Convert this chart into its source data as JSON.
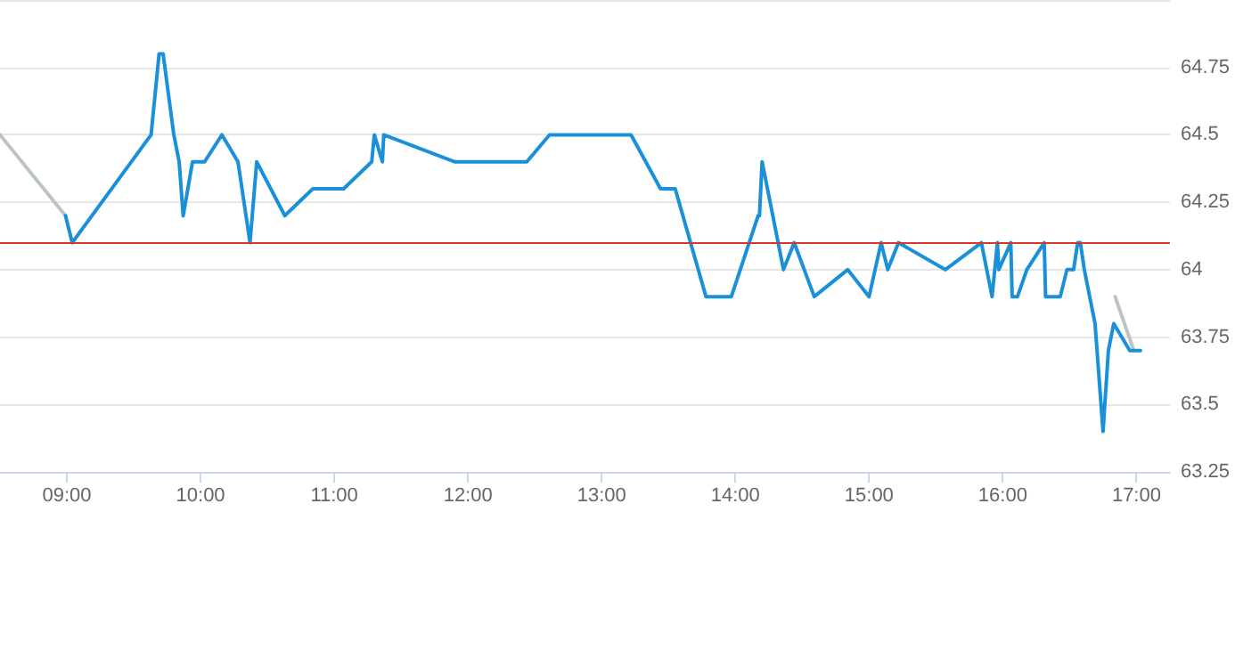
{
  "chart_data": {
    "type": "line",
    "xlim": [
      8.5,
      17.25
    ],
    "ylim": [
      63.25,
      65
    ],
    "xticks": [
      {
        "value": 9,
        "label": "09:00"
      },
      {
        "value": 10,
        "label": "10:00"
      },
      {
        "value": 11,
        "label": "11:00"
      },
      {
        "value": 12,
        "label": "12:00"
      },
      {
        "value": 13,
        "label": "13:00"
      },
      {
        "value": 14,
        "label": "14:00"
      },
      {
        "value": 15,
        "label": "15:00"
      },
      {
        "value": 16,
        "label": "16:00"
      },
      {
        "value": 17,
        "label": "17:00"
      }
    ],
    "yticks": [
      63.25,
      63.5,
      63.75,
      64,
      64.25,
      64.5,
      64.75,
      {
        "value": 65,
        "label": null
      }
    ],
    "grid": "y",
    "marker": "none",
    "line_style": "solid",
    "ref_lines": [
      {
        "axis": "y",
        "value": 64.1,
        "color": "#d9362b"
      }
    ],
    "series": [
      {
        "color": "#bcc3c7",
        "x": [
          8.5,
          8.99,
          null,
          16.84,
          16.98
        ],
        "values": [
          64.5,
          64.2,
          null,
          63.9,
          63.7
        ]
      },
      {
        "color": "#1a90d9",
        "x": [
          8.99,
          9.04,
          9.63,
          9.69,
          9.72,
          9.8,
          9.84,
          9.87,
          9.94,
          10.03,
          10.16,
          10.28,
          10.37,
          10.42,
          10.63,
          10.84,
          11.07,
          11.28,
          11.3,
          11.36,
          11.37,
          11.9,
          12.44,
          12.61,
          13.22,
          13.44,
          13.55,
          13.78,
          13.97,
          14.17,
          14.18,
          14.2,
          14.36,
          14.44,
          14.59,
          14.84,
          15.0,
          15.09,
          15.14,
          15.22,
          15.57,
          15.84,
          15.92,
          15.96,
          15.97,
          16.06,
          16.07,
          16.11,
          16.18,
          16.31,
          16.32,
          16.43,
          16.48,
          16.53,
          16.56,
          16.58,
          16.61,
          16.69,
          16.75,
          16.79,
          16.83,
          16.95,
          17.03
        ],
        "values": [
          64.2,
          64.1,
          64.5,
          64.8,
          64.8,
          64.5,
          64.4,
          64.2,
          64.4,
          64.4,
          64.5,
          64.4,
          64.1,
          64.4,
          64.2,
          64.3,
          64.3,
          64.4,
          64.5,
          64.4,
          64.5,
          64.4,
          64.4,
          64.5,
          64.5,
          64.3,
          64.3,
          63.9,
          63.9,
          64.2,
          64.2,
          64.4,
          64.0,
          64.1,
          63.9,
          64.0,
          63.9,
          64.1,
          64.0,
          64.1,
          64.0,
          64.1,
          63.9,
          64.1,
          64.0,
          64.1,
          63.9,
          63.9,
          64.0,
          64.1,
          63.9,
          63.9,
          64.0,
          64.0,
          64.1,
          64.1,
          64.0,
          63.8,
          63.4,
          63.7,
          63.8,
          63.7,
          63.7
        ]
      }
    ]
  }
}
